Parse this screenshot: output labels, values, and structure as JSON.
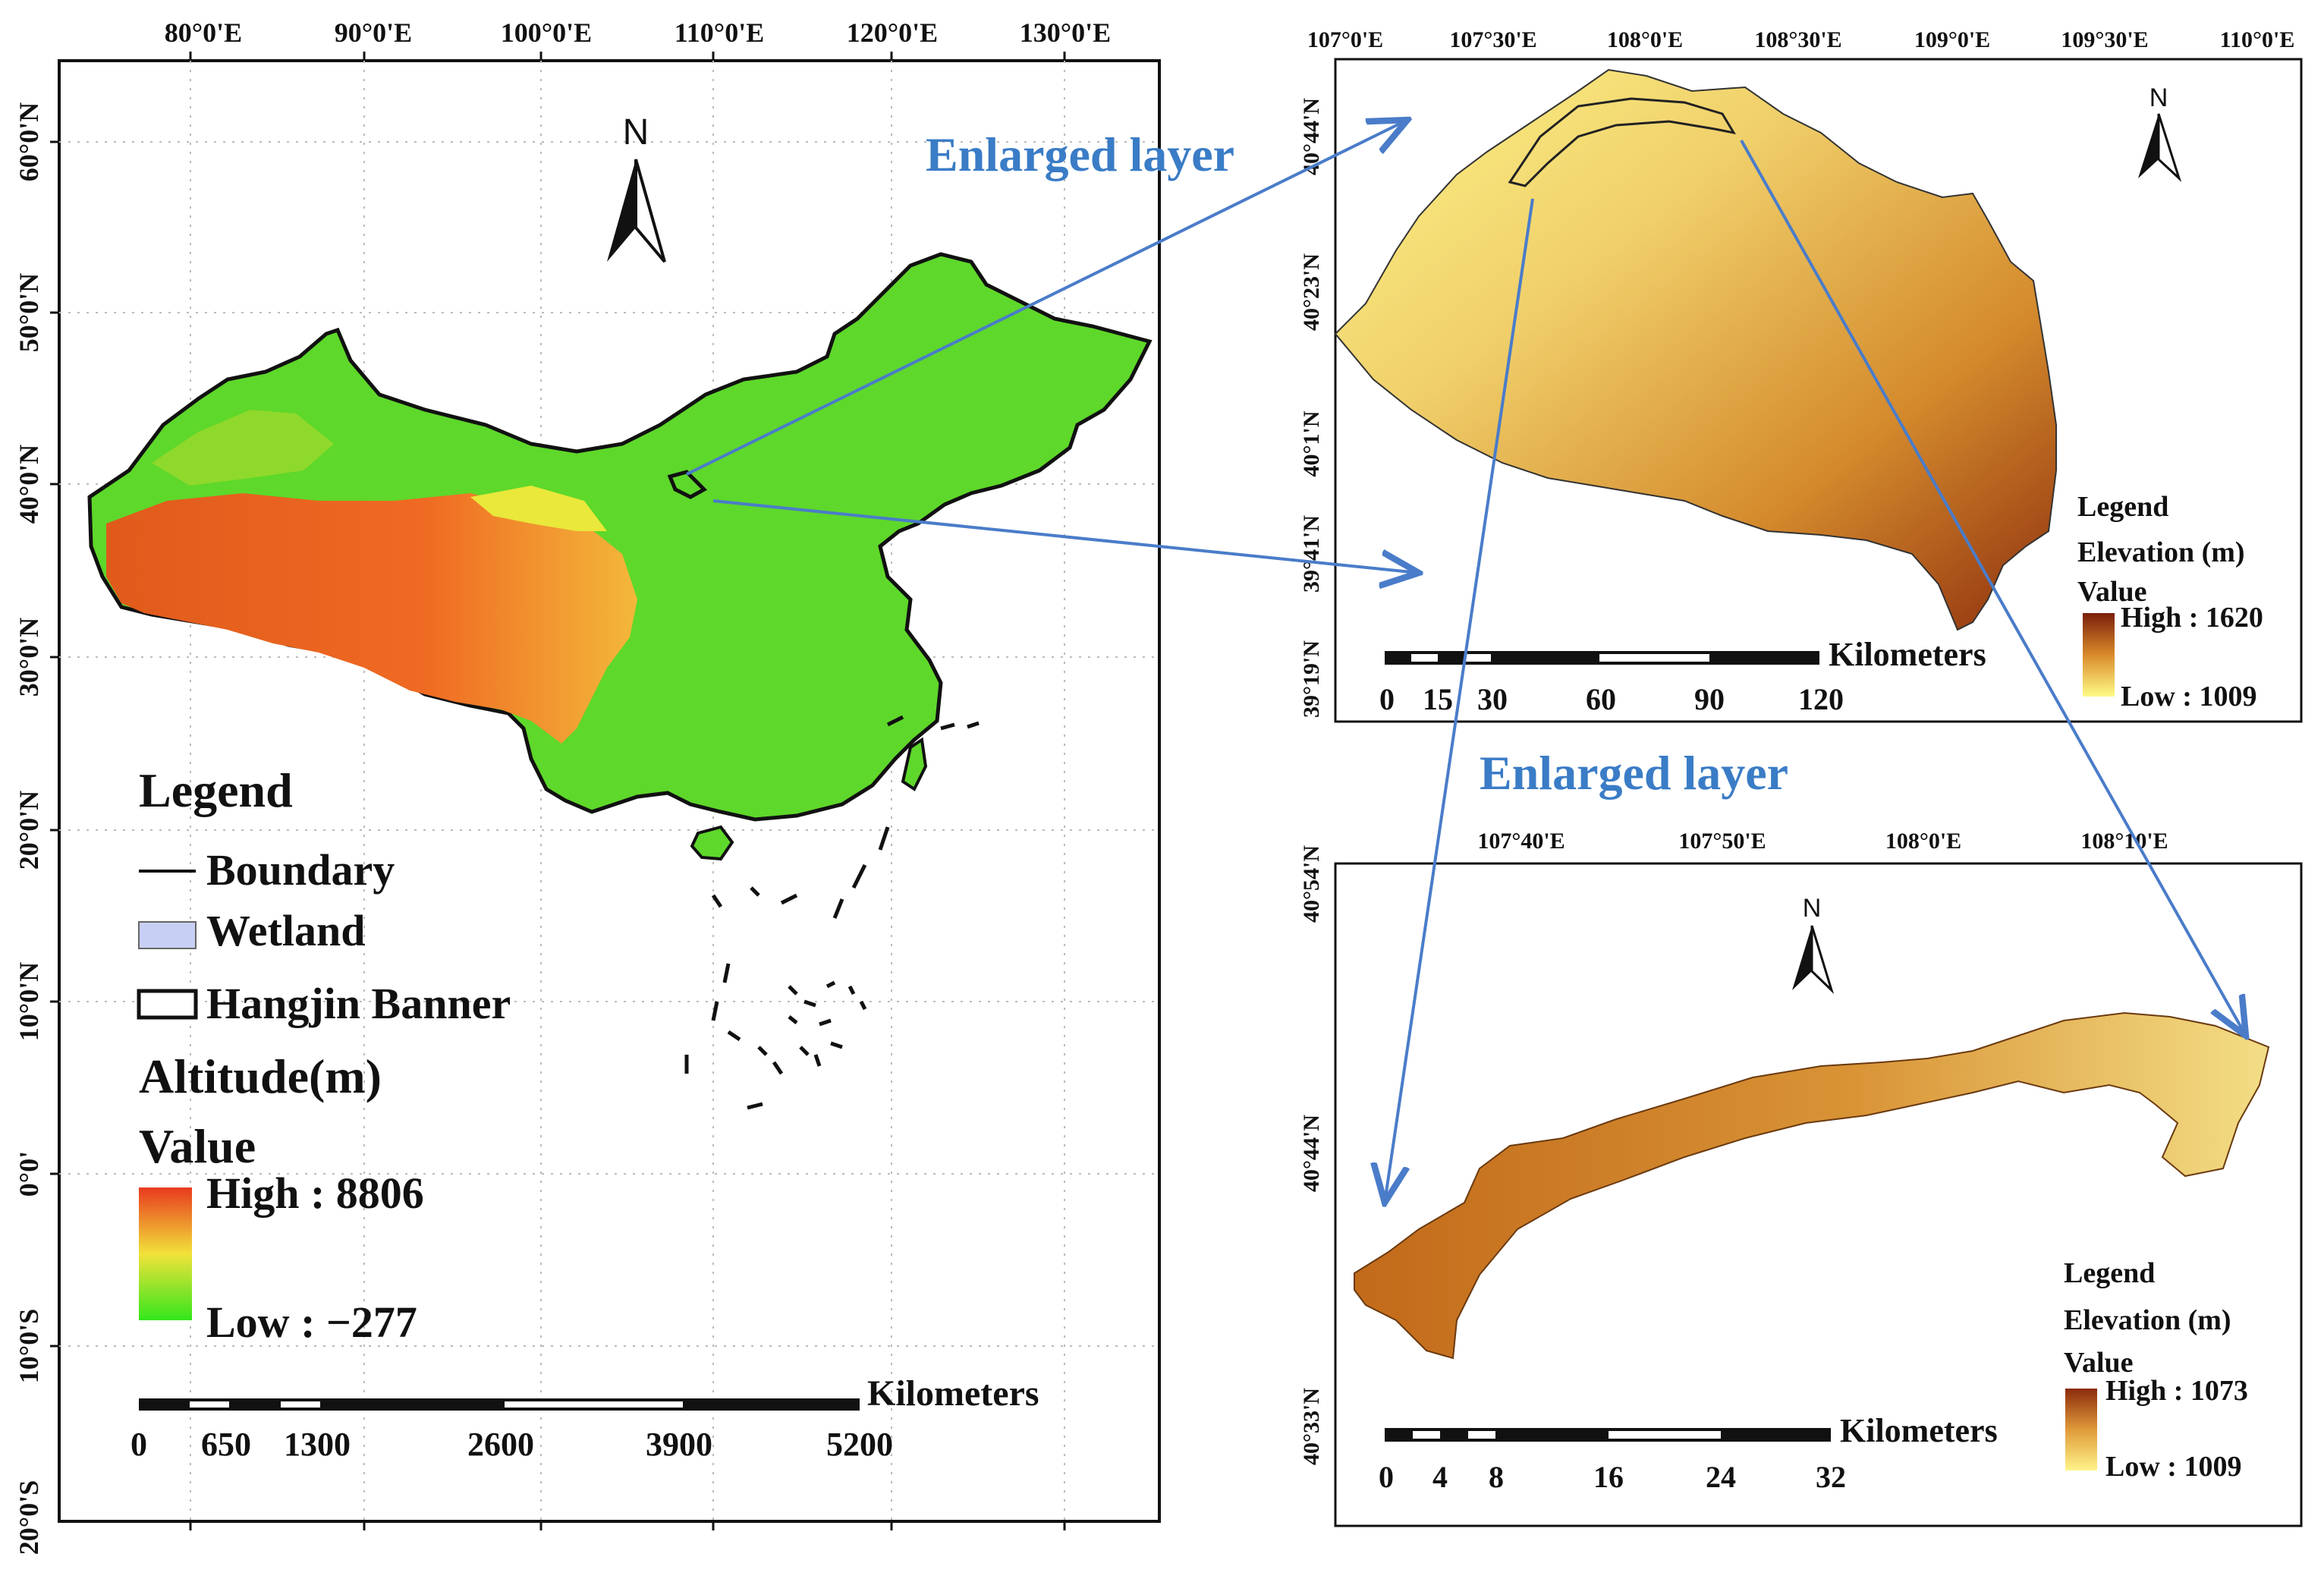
{
  "main_map": {
    "lon_labels": [
      "80°0'E",
      "90°0'E",
      "100°0'E",
      "110°0'E",
      "120°0'E",
      "130°0'E"
    ],
    "lat_labels": [
      "60°0'N",
      "50°0'N",
      "40°0'N",
      "30°0'N",
      "20°0'N",
      "10°0'N",
      "0°0'",
      "10°0'S",
      "20°0'S"
    ],
    "north_label": "N",
    "legend": {
      "title": "Legend",
      "items": [
        "Boundary",
        "Wetland",
        "Hangjin Banner"
      ],
      "altitude_title": "Altitude(m)",
      "value_title": "Value",
      "high": "High : 8806",
      "low": "Low : −277",
      "colors": {
        "high": "#e8391e",
        "mid": "#f2e23a",
        "low": "#33e61c",
        "wetland": "#c8cff5"
      }
    },
    "scale": {
      "unit": "Kilometers",
      "labels": [
        "0",
        "650",
        "1300",
        "2600",
        "3900",
        "5200"
      ]
    }
  },
  "enlarged_labels": [
    "Enlarged layer",
    "Enlarged layer"
  ],
  "top_inset": {
    "lon_labels": [
      "107°0'E",
      "107°30'E",
      "108°0'E",
      "108°30'E",
      "109°0'E",
      "109°30'E",
      "110°0'E"
    ],
    "lat_labels": [
      "40°44'N",
      "40°23'N",
      "40°1'N",
      "39°41'N",
      "39°19'N"
    ],
    "north_label": "N",
    "legend": {
      "title": "Legend",
      "elevation_title": "Elevation (m)",
      "value_title": "Value",
      "high": "High : 1620",
      "low": "Low : 1009",
      "colors": {
        "high": "#7a1e0b",
        "low": "#fffb86"
      }
    },
    "scale": {
      "unit": "Kilometers",
      "labels": [
        "0",
        "15",
        "30",
        "60",
        "90",
        "120"
      ]
    }
  },
  "bottom_inset": {
    "lon_labels": [
      "107°40'E",
      "107°50'E",
      "108°0'E",
      "108°10'E"
    ],
    "lat_labels": [
      "40°54'N",
      "40°44'N",
      "40°33'N"
    ],
    "north_label": "N",
    "legend": {
      "title": "Legend",
      "elevation_title": "Elevation (m)",
      "value_title": "Value",
      "high": "High : 1073",
      "low": "Low : 1009",
      "colors": {
        "high": "#8b2a0c",
        "low": "#fff48a"
      }
    },
    "scale": {
      "unit": "Kilometers",
      "labels": [
        "0",
        "4",
        "8",
        "16",
        "24",
        "32"
      ]
    }
  },
  "colors": {
    "arrow": "#4a7cc9"
  }
}
